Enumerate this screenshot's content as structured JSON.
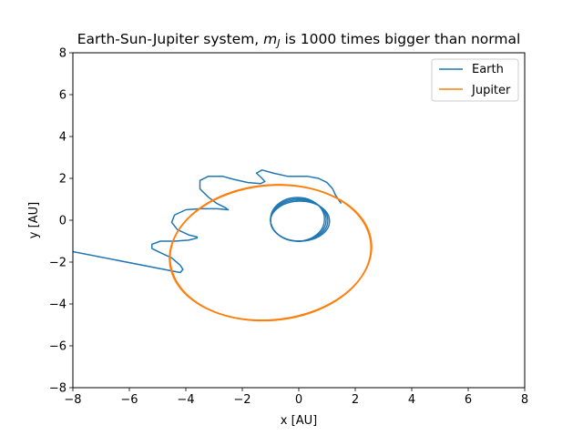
{
  "chart_data": {
    "type": "line",
    "title_pre": "Earth-Sun-Jupiter system, ",
    "title_math_m": "m",
    "title_math_sub": "J",
    "title_post": " is 1000 times bigger than normal",
    "xlabel": "x [AU]",
    "ylabel": "y [AU]",
    "xlim": [
      -8,
      8
    ],
    "ylim": [
      -8,
      8
    ],
    "xticks": [
      -8,
      -6,
      -4,
      -2,
      0,
      2,
      4,
      6,
      8
    ],
    "yticks": [
      -8,
      -6,
      -4,
      -2,
      0,
      2,
      4,
      6,
      8
    ],
    "grid": false,
    "legend_position": "top-right",
    "series": [
      {
        "name": "Earth",
        "color": "#1f77b4",
        "x": [
          1.5,
          1.3,
          1.2,
          1.0,
          0.7,
          0.3,
          0.0,
          -0.4,
          -0.9,
          -1.3,
          -1.5,
          -1.3,
          -1.2,
          -1.35,
          -1.8,
          -2.3,
          -2.7,
          -3.2,
          -3.5,
          -3.5,
          -3.2,
          -2.9,
          -2.6,
          -2.5,
          -2.9,
          -3.5,
          -4.0,
          -4.4,
          -4.5,
          -4.3,
          -3.9,
          -3.6,
          -3.6,
          -3.9,
          -4.4,
          -4.9,
          -5.2,
          -5.2,
          -4.9,
          -4.5,
          -4.2,
          -4.1,
          -4.2,
          -8.0
        ],
        "y": [
          0.8,
          1.2,
          1.5,
          1.8,
          2.0,
          2.1,
          2.1,
          2.1,
          2.25,
          2.4,
          2.25,
          2.0,
          1.85,
          1.75,
          1.8,
          1.95,
          2.1,
          2.1,
          1.9,
          1.5,
          1.1,
          0.8,
          0.6,
          0.5,
          0.55,
          0.55,
          0.5,
          0.25,
          -0.1,
          -0.45,
          -0.7,
          -0.8,
          -0.85,
          -0.95,
          -1.0,
          -1.0,
          -1.15,
          -1.35,
          -1.55,
          -1.8,
          -2.15,
          -2.35,
          -2.5,
          -1.5
        ]
      },
      {
        "name": "Jupiter",
        "color": "#ff7f0e",
        "center": [
          -1.0,
          -1.55
        ],
        "semi_major": 3.6,
        "semi_minor": 3.2,
        "rotation_deg": 20
      }
    ],
    "earth_inner_orbit": {
      "center": [
        0.0,
        0.0
      ],
      "radius": 1.0
    }
  }
}
